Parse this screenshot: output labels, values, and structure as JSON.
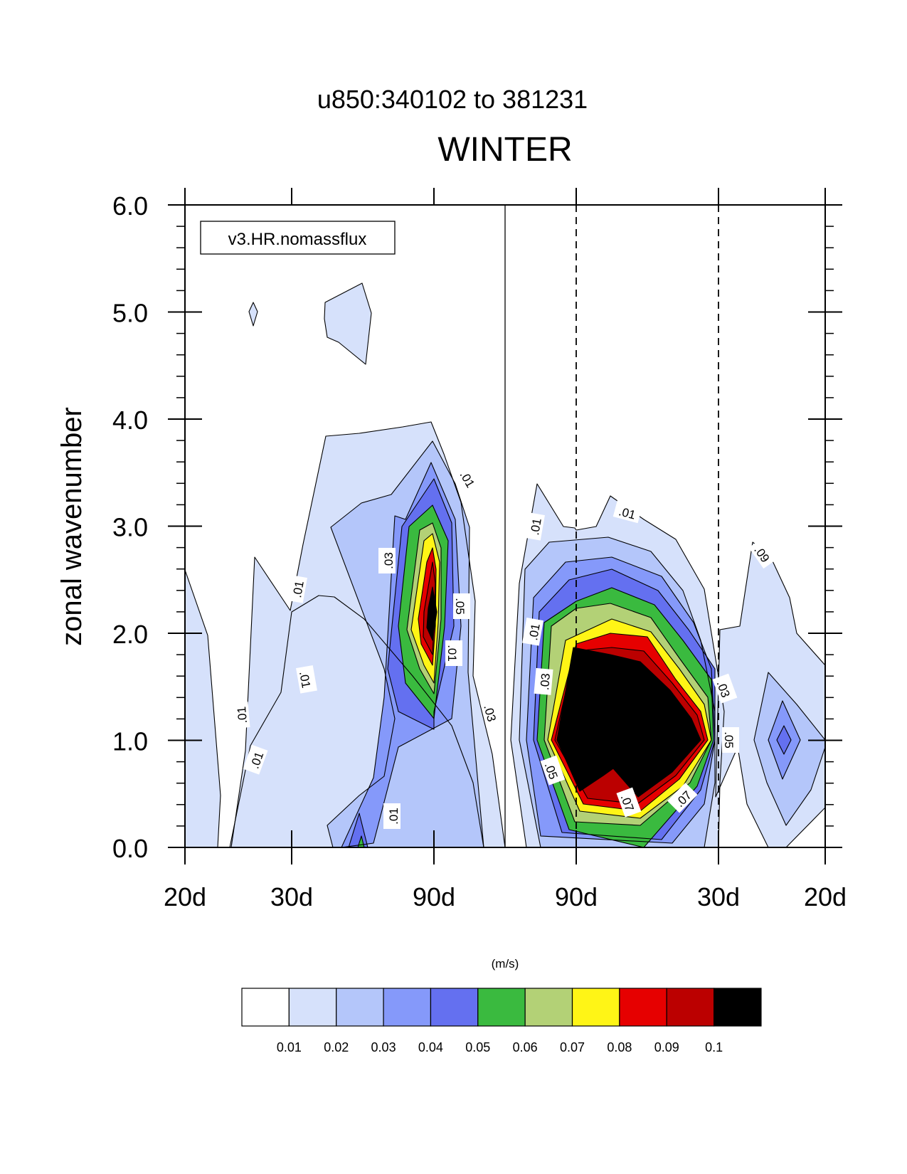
{
  "chart_data": {
    "type": "heatmap",
    "subtitle": "u850:340102 to 381231",
    "title": "WINTER",
    "legend_box": "v3.HR.nomassflux",
    "ylabel": "zonal wavenumber",
    "units_label": "(m/s)",
    "ylim": [
      0,
      6
    ],
    "yticks": [
      "0.0",
      "1.0",
      "2.0",
      "3.0",
      "4.0",
      "5.0",
      "6.0"
    ],
    "xticks": [
      "20d",
      "30d",
      "90d",
      "90d",
      "30d",
      "20d"
    ],
    "contour_levels": [
      "0.01",
      "0.02",
      "0.03",
      "0.04",
      "0.05",
      "0.06",
      "0.07",
      "0.08",
      "0.09",
      "0.1"
    ],
    "colors": [
      "#ffffff",
      "#d6e1fb",
      "#b4c6fa",
      "#8599fa",
      "#6470f0",
      "#3aba3f",
      "#b3d176",
      "#fff516",
      "#e60000",
      "#bb0000",
      "#000000"
    ],
    "contour_labels": [
      ".01",
      ".01",
      ".01",
      ".01",
      ".01",
      ".01",
      ".01",
      ".03",
      ".03",
      ".03",
      ".05",
      ".01",
      ".01",
      ".01",
      ".03",
      ".05",
      ".03",
      ".05",
      ".07",
      ".07",
      ".09"
    ],
    "peaks": [
      {
        "side": "westward",
        "period": "90d",
        "wavenumber": 2,
        "max": 0.09
      },
      {
        "side": "eastward",
        "period": "between 90d and 30d",
        "wavenumber": 1,
        "max": 0.1
      }
    ]
  }
}
